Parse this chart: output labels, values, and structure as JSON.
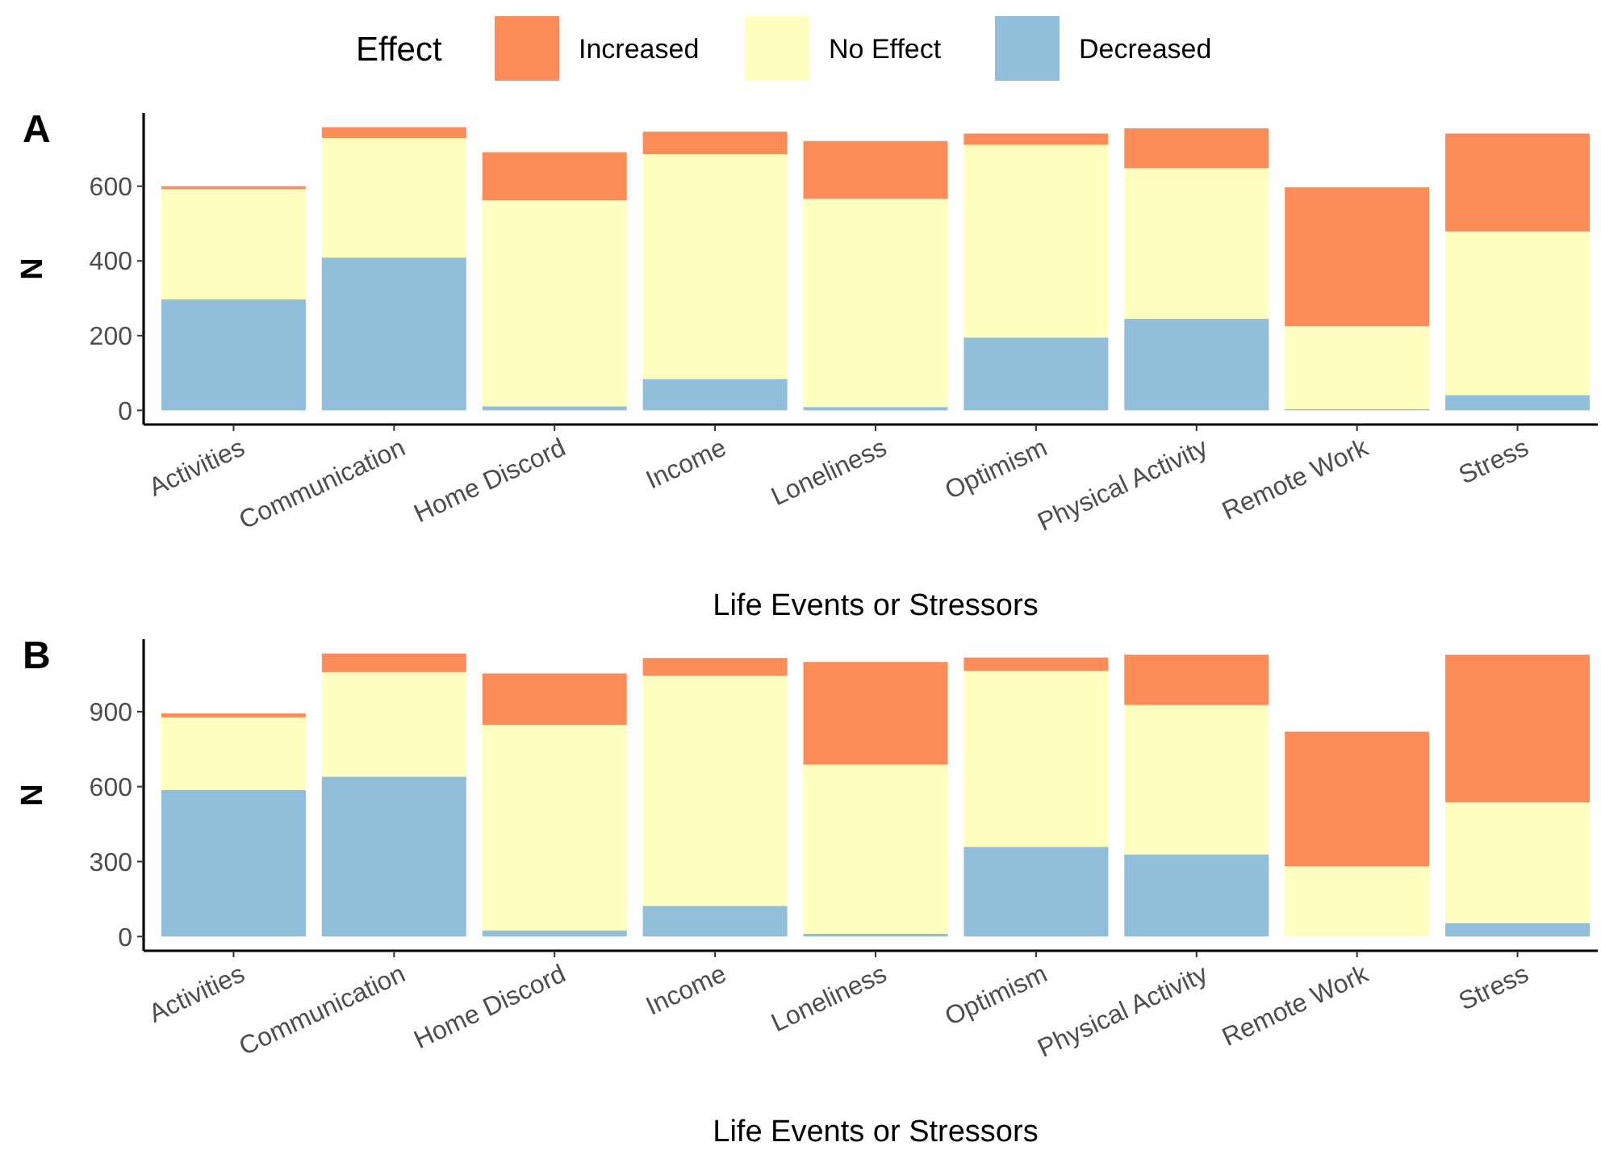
{
  "chart_data": [
    {
      "type": "bar",
      "title": "A",
      "xlabel": "Life Events or Stressors",
      "ylabel": "N",
      "legend_title": "Effect",
      "legend": "top",
      "stacked": true,
      "grid": false,
      "categories": [
        "Activities",
        "Communication",
        "Home Discord",
        "Income",
        "Loneliness",
        "Optimism",
        "Physical Activity",
        "Remote Work",
        "Stress"
      ],
      "series": [
        {
          "name": "Decreased",
          "color": "#91bfdb",
          "values": [
            297,
            409,
            11,
            84,
            9,
            195,
            245,
            3,
            41
          ]
        },
        {
          "name": "No Effect",
          "color": "#ffffbf",
          "values": [
            295,
            320,
            551,
            602,
            557,
            516,
            403,
            222,
            438
          ]
        },
        {
          "name": "Increased",
          "color": "#fc8d59",
          "values": [
            8,
            29,
            129,
            60,
            155,
            30,
            107,
            372,
            262
          ]
        }
      ],
      "ylim": [
        -38,
        796
      ],
      "yticks": [
        0,
        200,
        400,
        600
      ]
    },
    {
      "type": "bar",
      "title": "B",
      "xlabel": "Life Events or Stressors",
      "ylabel": "N",
      "stacked": true,
      "grid": false,
      "categories": [
        "Activities",
        "Communication",
        "Home Discord",
        "Income",
        "Loneliness",
        "Optimism",
        "Physical Activity",
        "Remote Work",
        "Stress"
      ],
      "series": [
        {
          "color": "#91bfdb",
          "values": [
            587,
            640,
            25,
            123,
            11,
            359,
            329,
            null,
            53
          ]
        },
        {
          "color": "#ffffbf",
          "values": [
            290,
            418,
            822,
            921,
            677,
            705,
            598,
            281,
            484
          ]
        },
        {
          "color": "#fc8d59",
          "values": [
            16,
            75,
            206,
            71,
            411,
            53,
            201,
            539,
            591
          ]
        }
      ],
      "ylim": [
        -57,
        1190
      ],
      "yticks": [
        0,
        300,
        600,
        900
      ]
    }
  ]
}
